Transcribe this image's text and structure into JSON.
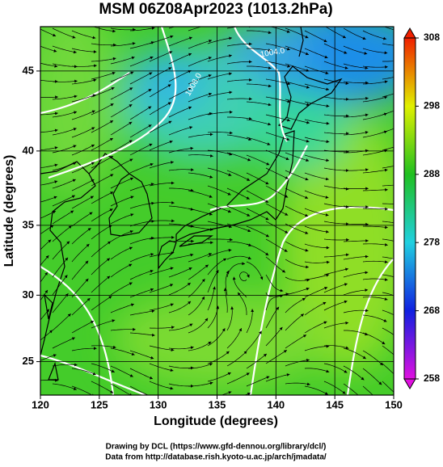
{
  "map": {
    "title": "MSM 06Z08Apr2023 (1013.2hPa)",
    "xlabel": "Longitude (degrees)",
    "ylabel": "Latitude  (degrees)",
    "projection": "mercator",
    "xlim": [
      120,
      150
    ],
    "ylim": [
      22.4,
      47.6
    ],
    "xticks": [
      120,
      125,
      130,
      135,
      140,
      145,
      150
    ],
    "yticks": [
      25,
      30,
      35,
      40,
      45
    ],
    "grid": true,
    "colorbar": {
      "lim": [
        258,
        308
      ],
      "ticks": [
        258,
        268,
        278,
        288,
        298,
        308
      ],
      "colors": [
        "#e010e0",
        "#1020e0",
        "#20d0e0",
        "#20c020",
        "#e0f000",
        "#f02000"
      ]
    },
    "contour_labels": [
      "1004.0",
      "1008.0"
    ],
    "credits": [
      "Drawing by DCL (https://www.gfd-dennou.org/library/dcl/)",
      "Data from http://database.rish.kyoto-u.ac.jp/arch/jmadata/"
    ]
  }
}
